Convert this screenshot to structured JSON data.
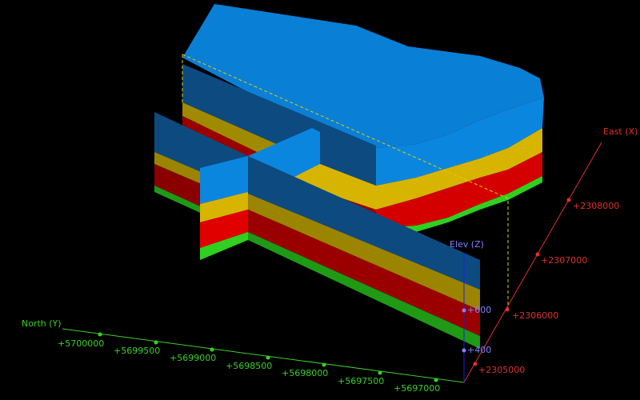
{
  "axes": {
    "north": {
      "label": "North (Y)",
      "ticks": [
        "+5700000",
        "+5699500",
        "+5699000",
        "+5698500",
        "+5698000",
        "+5697500",
        "+5697000"
      ]
    },
    "east": {
      "label": "East (X)",
      "ticks": [
        "+2305000",
        "+2306000",
        "+2307000",
        "+2308000"
      ]
    },
    "elev": {
      "label": "Elev (Z)",
      "ticks": [
        "+600",
        "+400"
      ]
    }
  }
}
